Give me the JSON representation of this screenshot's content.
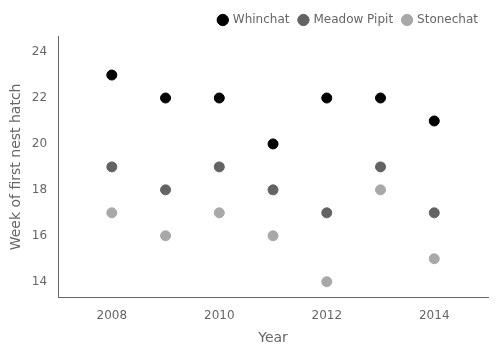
{
  "chart_data": {
    "type": "scatter",
    "xlabel": "Year",
    "ylabel": "Week of first nest hatch",
    "xlim": [
      2007.0,
      2015.0
    ],
    "ylim": [
      13.3,
      24.7
    ],
    "xticks": [
      2008,
      2010,
      2012,
      2014
    ],
    "yticks": [
      14,
      16,
      18,
      20,
      22,
      24
    ],
    "series": [
      {
        "name": "Whinchat",
        "color": "#000000",
        "x": [
          2008,
          2009,
          2010,
          2011,
          2012,
          2013,
          2014
        ],
        "values": [
          23,
          22,
          22,
          20,
          22,
          22,
          21
        ]
      },
      {
        "name": "Meadow Pipit",
        "color": "#636363",
        "x": [
          2008,
          2009,
          2010,
          2011,
          2012,
          2013,
          2014
        ],
        "values": [
          19,
          18,
          19,
          18,
          17,
          19,
          17
        ]
      },
      {
        "name": "Stonechat",
        "color": "#a8a8a8",
        "x": [
          2008,
          2009,
          2010,
          2011,
          2012,
          2013,
          2014
        ],
        "values": [
          17,
          16,
          17,
          16,
          14,
          18,
          15
        ]
      }
    ],
    "legend": "upper right",
    "grid": false
  }
}
